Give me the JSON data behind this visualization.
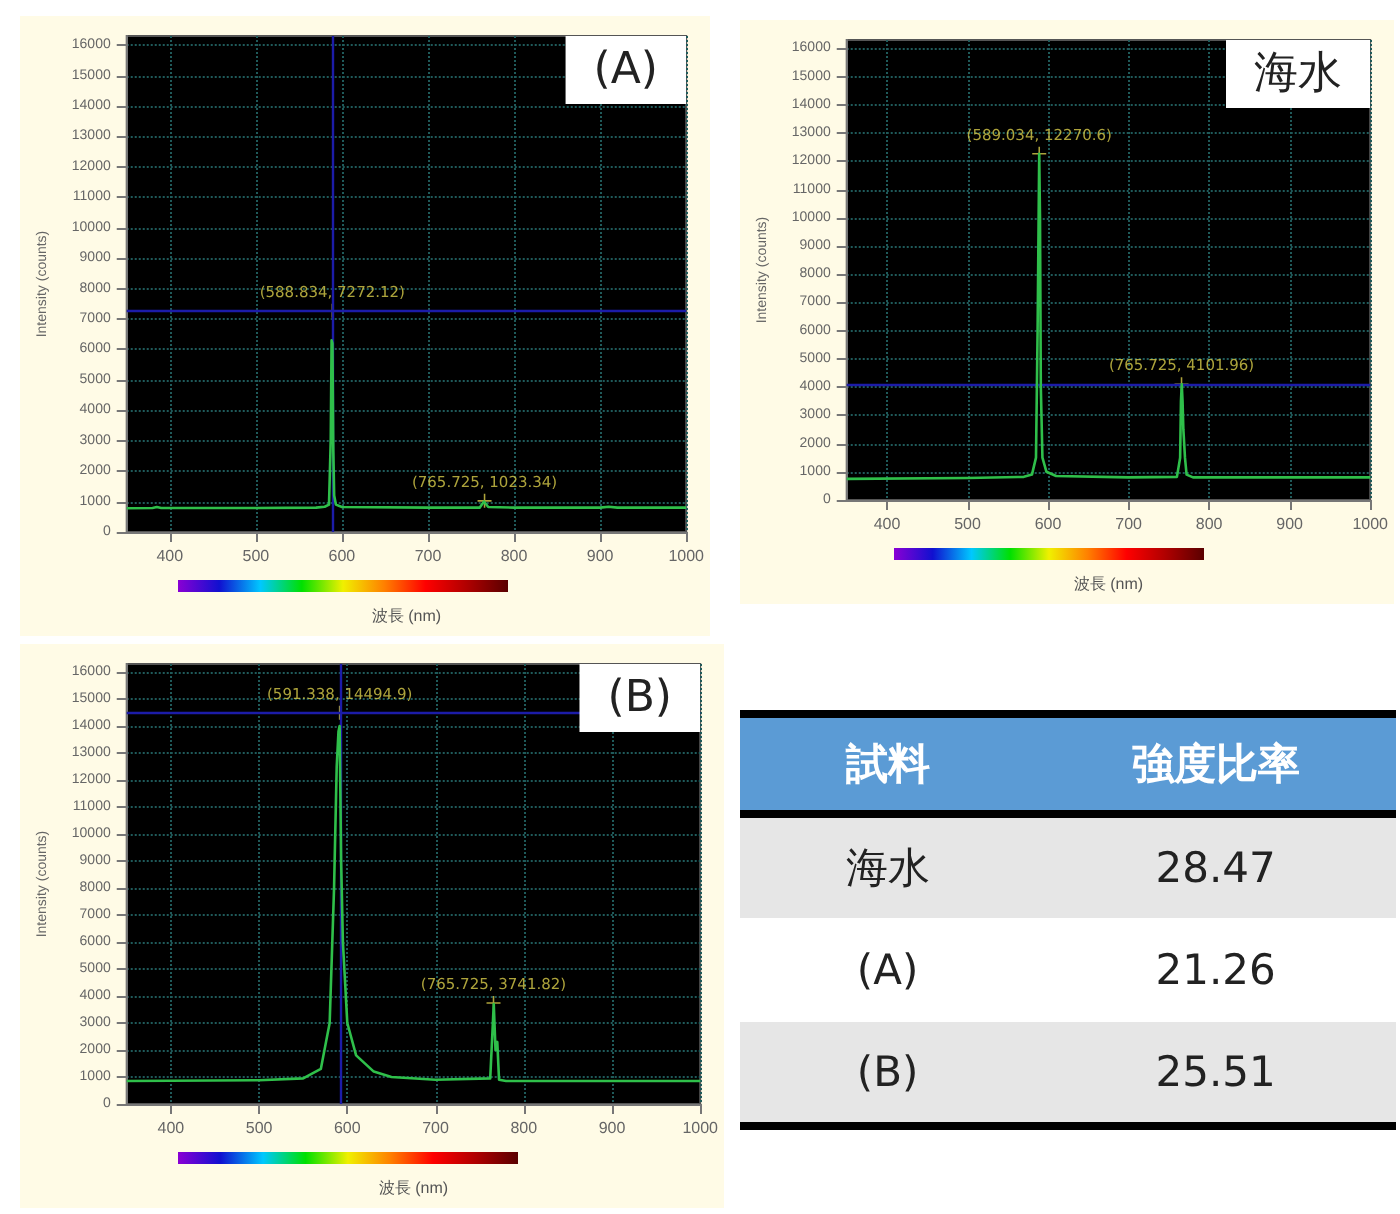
{
  "chart_data": [
    {
      "type": "line",
      "title": "(A)",
      "xlabel": "波長 (nm)",
      "ylabel": "Intensity (counts)",
      "xlim": [
        350,
        1000
      ],
      "xticks": [
        400,
        500,
        600,
        700,
        800,
        900,
        1000
      ],
      "ylim": [
        0,
        16300
      ],
      "yticks": [
        0,
        1000,
        2000,
        3000,
        4000,
        5000,
        6000,
        7000,
        8000,
        9000,
        10000,
        11000,
        12000,
        13000,
        14000,
        15000,
        16000
      ],
      "grid": true,
      "x": [
        350,
        380,
        385,
        390,
        500,
        570,
        580,
        585,
        587,
        588,
        589,
        590,
        591,
        593,
        600,
        700,
        760,
        765,
        770,
        800,
        900,
        910,
        920,
        1000
      ],
      "series": [
        {
          "color": "#2fbf4a",
          "values": [
            780,
            790,
            820,
            790,
            790,
            800,
            830,
            900,
            3000,
            6300,
            6200,
            2700,
            1200,
            900,
            820,
            800,
            800,
            1000,
            820,
            800,
            800,
            830,
            800,
            800
          ]
        }
      ],
      "ref_lines": [
        {
          "axis": "x",
          "value": 588.834,
          "color": "#1c1ca8"
        },
        {
          "axis": "y",
          "value": 7272.12,
          "color": "#1c1ca8"
        }
      ],
      "annotations": [
        {
          "text": "(588.834, 7272.12)",
          "x": 588.834,
          "y": 7272.12
        },
        {
          "text": "(765.725, 1023.34)",
          "x": 765.725,
          "y": 1023.34
        }
      ]
    },
    {
      "type": "line",
      "title": "海水",
      "xlabel": "波長 (nm)",
      "ylabel": "Intensity (counts)",
      "xlim": [
        350,
        1000
      ],
      "xticks": [
        400,
        500,
        600,
        700,
        800,
        900,
        1000
      ],
      "ylim": [
        0,
        16300
      ],
      "yticks": [
        0,
        1000,
        2000,
        3000,
        4000,
        5000,
        6000,
        7000,
        8000,
        9000,
        10000,
        11000,
        12000,
        13000,
        14000,
        15000,
        16000
      ],
      "grid": true,
      "x": [
        350,
        500,
        570,
        580,
        585,
        587,
        589,
        590,
        591,
        593,
        598,
        610,
        700,
        760,
        764,
        765,
        766,
        767,
        768,
        770,
        772,
        780,
        1000
      ],
      "series": [
        {
          "color": "#2fbf4a",
          "values": [
            750,
            780,
            820,
            900,
            1500,
            6000,
            12270,
            10000,
            4000,
            1500,
            1000,
            850,
            800,
            820,
            1500,
            3500,
            4100,
            3500,
            2500,
            1500,
            900,
            800,
            800
          ]
        }
      ],
      "ref_lines": [
        {
          "axis": "y",
          "value": 4101.96,
          "color": "#1c1ca8"
        }
      ],
      "annotations": [
        {
          "text": "(589.034, 12270.6)",
          "x": 589.034,
          "y": 12270.6
        },
        {
          "text": "(765.725, 4101.96)",
          "x": 765.725,
          "y": 4101.96
        }
      ]
    },
    {
      "type": "line",
      "title": "(B)",
      "xlabel": "波長 (nm)",
      "ylabel": "Intensity (counts)",
      "xlim": [
        350,
        1000
      ],
      "xticks": [
        400,
        500,
        600,
        700,
        800,
        900,
        1000
      ],
      "ylim": [
        0,
        16300
      ],
      "yticks": [
        0,
        1000,
        2000,
        3000,
        4000,
        5000,
        6000,
        7000,
        8000,
        9000,
        10000,
        11000,
        12000,
        13000,
        14000,
        15000,
        16000
      ],
      "grid": true,
      "x": [
        350,
        500,
        550,
        570,
        580,
        585,
        588,
        590,
        591.3,
        593,
        595,
        600,
        610,
        630,
        650,
        700,
        762,
        765,
        766,
        768,
        770,
        772,
        780,
        1000
      ],
      "series": [
        {
          "color": "#2fbf4a",
          "values": [
            850,
            880,
            950,
            1300,
            3000,
            8000,
            12500,
            13800,
            14000,
            9000,
            6000,
            3000,
            1800,
            1200,
            1000,
            900,
            950,
            3000,
            3700,
            2000,
            2300,
            900,
            850,
            850
          ]
        }
      ],
      "ref_lines": [
        {
          "axis": "x",
          "value": 591.338,
          "color": "#1c1ca8"
        },
        {
          "axis": "y",
          "value": 14494.9,
          "color": "#1c1ca8"
        }
      ],
      "annotations": [
        {
          "text": "(591.338, 14494.9)",
          "x": 591.338,
          "y": 14494.9
        },
        {
          "text": "(765.725, 3741.82)",
          "x": 765.725,
          "y": 3741.82
        }
      ]
    },
    {
      "type": "other",
      "xlabel": "試料",
      "ylabel": "強度比率",
      "categories": [
        "海水",
        "(A)",
        "(B)"
      ],
      "values": [
        28.47,
        21.26,
        25.51
      ],
      "data_labels": true
    }
  ]
}
